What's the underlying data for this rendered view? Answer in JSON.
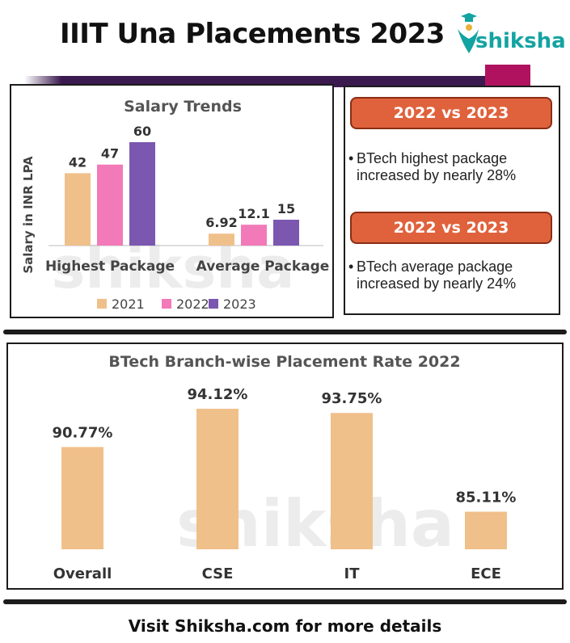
{
  "header": {
    "title": "IIIT Una Placements 2023",
    "logo_text": "shiksha",
    "logo_icon": "graduation-cap-icon"
  },
  "colors": {
    "series_2021": "#f0c08a",
    "series_2022": "#f27ab9",
    "series_2023": "#7b57b0",
    "placement_bar": "#f0c08a",
    "accent_orange": "#e0623c",
    "band_purple": "#3b1a4f",
    "brand_teal": "#14a3a3"
  },
  "chart_data": [
    {
      "type": "bar",
      "title": "Salary Trends",
      "ylabel": "Salary in INR LPA",
      "xlabel": "",
      "categories": [
        "Highest Package",
        "Average Package"
      ],
      "series": [
        {
          "name": "2021",
          "values": [
            42,
            6.92
          ],
          "labels": [
            "42",
            "6.92"
          ]
        },
        {
          "name": "2022",
          "values": [
            47,
            12.1
          ],
          "labels": [
            "47",
            "12.1"
          ]
        },
        {
          "name": "2023",
          "values": [
            60,
            15
          ],
          "labels": [
            "60",
            "15"
          ]
        }
      ],
      "ylim": [
        0,
        60
      ],
      "grid": false,
      "legend": "bottom"
    },
    {
      "type": "bar",
      "title": "BTech Branch-wise Placement Rate 2022",
      "xlabel": "",
      "ylabel": "",
      "categories": [
        "Overall",
        "CSE",
        "IT",
        "ECE"
      ],
      "values": [
        90.77,
        94.12,
        93.75,
        85.11
      ],
      "labels": [
        "90.77%",
        "94.12%",
        "93.75%",
        "85.11%"
      ],
      "grid": false
    }
  ],
  "comparisons": [
    {
      "header": "2022 vs 2023",
      "text": "BTech highest package increased by nearly 28%"
    },
    {
      "header": "2022 vs 2023",
      "text": "BTech average package increased by nearly 24%"
    }
  ],
  "footer": {
    "text": "Visit Shiksha.com for more details"
  },
  "watermark": {
    "text": "shiksha"
  }
}
